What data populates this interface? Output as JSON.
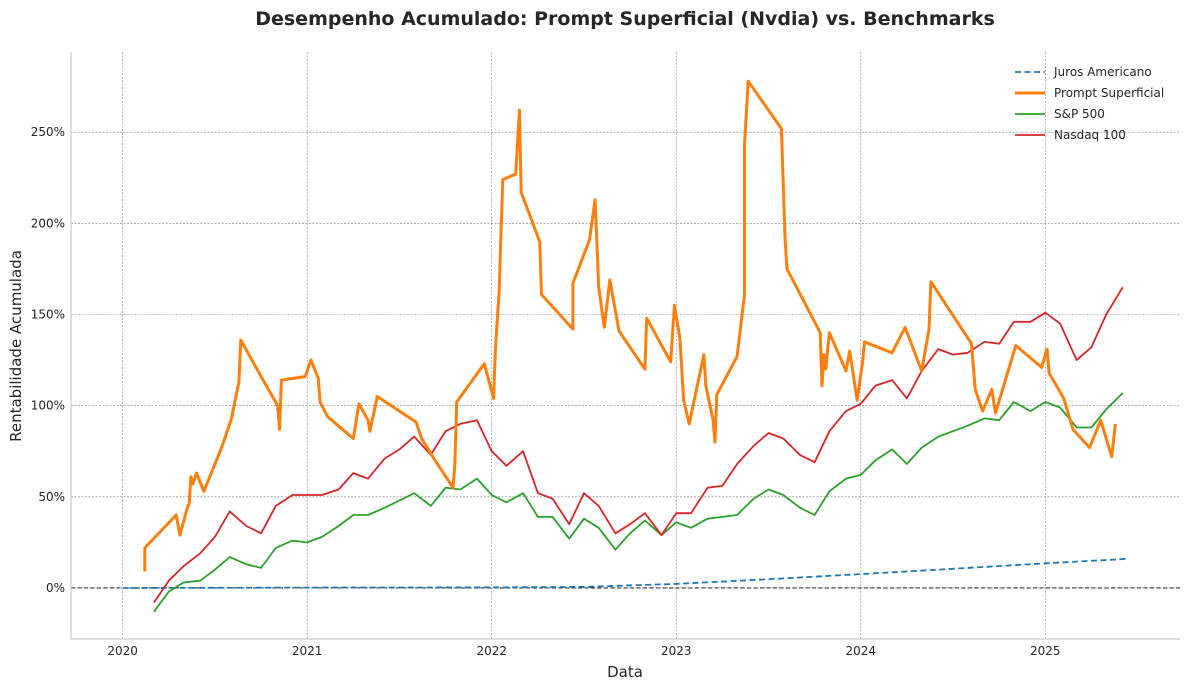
{
  "chart_data": {
    "type": "line",
    "title": "Desempenho Acumulado: Prompt Superficial (Nvdia) vs. Benchmarks",
    "xlabel": "Data",
    "ylabel": "Rentabilidade Acumulada",
    "xlim": [
      2019.72,
      2025.73
    ],
    "ylim": [
      -28,
      294
    ],
    "x_ticks": [
      2020,
      2021,
      2022,
      2023,
      2024,
      2025
    ],
    "x_tick_labels": [
      "2020",
      "2021",
      "2022",
      "2023",
      "2024",
      "2025"
    ],
    "y_ticks": [
      0,
      50,
      100,
      150,
      200,
      250
    ],
    "y_tick_labels": [
      "0%",
      "50%",
      "100%",
      "150%",
      "200%",
      "250%"
    ],
    "grid": true,
    "legend_position": "top-right",
    "reference_line": {
      "y": 0,
      "style": "dashed",
      "color": "#000000"
    },
    "series": [
      {
        "name": "Juros Americano",
        "color": "#1f77b4",
        "style": "dashed",
        "width": 1.8,
        "x": [
          2020.0,
          2021.0,
          2022.0,
          2022.5,
          2023.0,
          2023.5,
          2024.0,
          2024.5,
          2025.0,
          2025.45
        ],
        "y": [
          0.0,
          0.2,
          0.3,
          0.6,
          2.2,
          4.8,
          7.6,
          10.5,
          13.5,
          16.0
        ]
      },
      {
        "name": "Prompt Superficial",
        "color": "#ff7f0e",
        "style": "solid",
        "width": 3,
        "x": [
          2020.12,
          2020.12,
          2020.29,
          2020.31,
          2020.35,
          2020.36,
          2020.37,
          2020.38,
          2020.4,
          2020.44,
          2020.54,
          2020.59,
          2020.63,
          2020.64,
          2020.75,
          2020.84,
          2020.85,
          2020.86,
          2020.99,
          2021.02,
          2021.06,
          2021.07,
          2021.11,
          2021.25,
          2021.28,
          2021.33,
          2021.34,
          2021.38,
          2021.59,
          2021.62,
          2021.68,
          2021.79,
          2021.8,
          2021.81,
          2021.96,
          2022.01,
          2022.02,
          2022.04,
          2022.05,
          2022.06,
          2022.13,
          2022.15,
          2022.16,
          2022.26,
          2022.27,
          2022.44,
          2022.44,
          2022.53,
          2022.56,
          2022.58,
          2022.61,
          2022.64,
          2022.69,
          2022.83,
          2022.84,
          2022.97,
          2022.99,
          2023.02,
          2023.04,
          2023.07,
          2023.15,
          2023.16,
          2023.2,
          2023.21,
          2023.22,
          2023.33,
          2023.37,
          2023.37,
          2023.39,
          2023.57,
          2023.59,
          2023.6,
          2023.78,
          2023.79,
          2023.8,
          2023.81,
          2023.83,
          2023.92,
          2023.94,
          2023.98,
          2024.01,
          2024.02,
          2024.17,
          2024.24,
          2024.33,
          2024.37,
          2024.38,
          2024.6,
          2024.62,
          2024.66,
          2024.71,
          2024.73,
          2024.84,
          2024.98,
          2025.01,
          2025.02,
          2025.1,
          2025.15,
          2025.24,
          2025.3,
          2025.36,
          2025.38
        ],
        "y": [
          9,
          22,
          40,
          29,
          44,
          46,
          61,
          57,
          63,
          53,
          78,
          93,
          113,
          136,
          116,
          100,
          87,
          114,
          116,
          125,
          115,
          102,
          94,
          82,
          101,
          92,
          86,
          105,
          91,
          82,
          72,
          55,
          67,
          102,
          123,
          104,
          131,
          162,
          193,
          224,
          227,
          262,
          217,
          190,
          161,
          142,
          167,
          191,
          213,
          165,
          143,
          169,
          141,
          120,
          148,
          124,
          155,
          137,
          103,
          90,
          128,
          111,
          92,
          80,
          106,
          127,
          161,
          243,
          278,
          252,
          191,
          175,
          140,
          111,
          128,
          120,
          140,
          119,
          130,
          103,
          124,
          135,
          129,
          143,
          119,
          142,
          168,
          134,
          109,
          97,
          109,
          96,
          133,
          121,
          131,
          118,
          104,
          87,
          77,
          92,
          72,
          90
        ]
      },
      {
        "name": "S&P 500",
        "color": "#2ca02c",
        "style": "solid",
        "width": 1.8,
        "x": [
          2020.17,
          2020.25,
          2020.33,
          2020.42,
          2020.5,
          2020.58,
          2020.67,
          2020.75,
          2020.83,
          2020.92,
          2021.0,
          2021.08,
          2021.17,
          2021.25,
          2021.33,
          2021.42,
          2021.5,
          2021.58,
          2021.67,
          2021.75,
          2021.83,
          2021.92,
          2022.0,
          2022.08,
          2022.17,
          2022.25,
          2022.33,
          2022.42,
          2022.5,
          2022.58,
          2022.67,
          2022.75,
          2022.83,
          2022.92,
          2023.0,
          2023.08,
          2023.17,
          2023.25,
          2023.33,
          2023.42,
          2023.5,
          2023.58,
          2023.67,
          2023.75,
          2023.83,
          2023.92,
          2024.0,
          2024.08,
          2024.17,
          2024.25,
          2024.33,
          2024.42,
          2024.5,
          2024.58,
          2024.67,
          2024.75,
          2024.83,
          2024.92,
          2025.0,
          2025.08,
          2025.17,
          2025.25,
          2025.33,
          2025.42
        ],
        "y": [
          -13,
          -2,
          3,
          4,
          10,
          17,
          13,
          11,
          22,
          26,
          25,
          28,
          34,
          40,
          40,
          44,
          48,
          52,
          45,
          55,
          54,
          60,
          51,
          47,
          52,
          39,
          39,
          27,
          38,
          33,
          21,
          30,
          37,
          29,
          36,
          33,
          38,
          39,
          40,
          49,
          54,
          51,
          44,
          40,
          53,
          60,
          62,
          70,
          76,
          68,
          77,
          83,
          86,
          89,
          93,
          92,
          102,
          97,
          102,
          99,
          88,
          88,
          98,
          107
        ]
      },
      {
        "name": "Nasdaq 100",
        "color": "#d62728",
        "style": "solid",
        "width": 1.8,
        "x": [
          2020.17,
          2020.25,
          2020.33,
          2020.42,
          2020.5,
          2020.58,
          2020.67,
          2020.75,
          2020.83,
          2020.92,
          2021.0,
          2021.08,
          2021.17,
          2021.25,
          2021.33,
          2021.42,
          2021.5,
          2021.58,
          2021.67,
          2021.75,
          2021.83,
          2021.92,
          2022.0,
          2022.08,
          2022.17,
          2022.25,
          2022.33,
          2022.42,
          2022.5,
          2022.58,
          2022.67,
          2022.75,
          2022.83,
          2022.92,
          2023.0,
          2023.08,
          2023.17,
          2023.25,
          2023.33,
          2023.42,
          2023.5,
          2023.58,
          2023.67,
          2023.75,
          2023.83,
          2023.92,
          2024.0,
          2024.08,
          2024.17,
          2024.25,
          2024.33,
          2024.42,
          2024.5,
          2024.58,
          2024.67,
          2024.75,
          2024.83,
          2024.92,
          2025.0,
          2025.08,
          2025.17,
          2025.25,
          2025.33,
          2025.42
        ],
        "y": [
          -8,
          4,
          12,
          19,
          28,
          42,
          34,
          30,
          45,
          51,
          51,
          51,
          54,
          63,
          60,
          71,
          76,
          83,
          73,
          86,
          90,
          92,
          75,
          67,
          75,
          52,
          49,
          35,
          52,
          45,
          30,
          35,
          41,
          29,
          41,
          41,
          55,
          56,
          68,
          78,
          85,
          82,
          73,
          69,
          86,
          97,
          101,
          111,
          114,
          104,
          119,
          131,
          128,
          129,
          135,
          134,
          146,
          146,
          151,
          145,
          125,
          132,
          150,
          165
        ]
      }
    ]
  }
}
